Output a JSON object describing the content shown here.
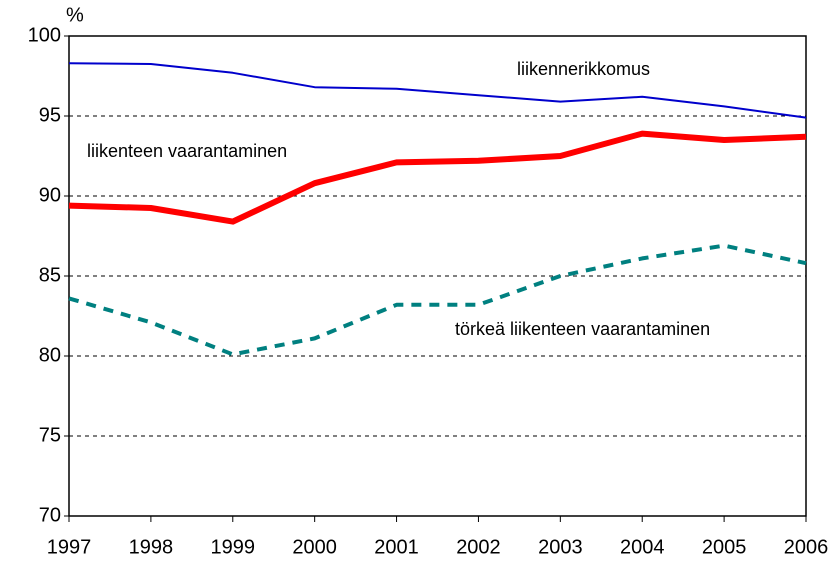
{
  "chart_data": {
    "type": "line",
    "y_label": "%",
    "categories": [
      "1997",
      "1998",
      "1999",
      "2000",
      "2001",
      "2002",
      "2003",
      "2004",
      "2005",
      "2006"
    ],
    "series": [
      {
        "name": "liikennerikkomus",
        "color": "#0000cc",
        "style": "solid",
        "width": 2,
        "values": [
          98.3,
          98.25,
          97.7,
          96.8,
          96.7,
          96.3,
          95.9,
          96.2,
          95.6,
          94.9
        ]
      },
      {
        "name": "liikenteen vaarantaminen",
        "color": "#ff0000",
        "style": "solid",
        "width": 6,
        "values": [
          89.4,
          89.25,
          88.4,
          90.8,
          92.1,
          92.2,
          92.5,
          93.9,
          93.5,
          93.7
        ]
      },
      {
        "name": "törkeä liikenteen vaarantaminen",
        "color": "#008080",
        "style": "dotted",
        "width": 4,
        "values": [
          83.6,
          82.1,
          80.1,
          81.1,
          83.2,
          83.2,
          85.0,
          86.1,
          86.9,
          85.8
        ]
      }
    ],
    "ylim": [
      70,
      100
    ],
    "yticks": [
      70,
      75,
      80,
      85,
      90,
      95,
      100
    ],
    "grid": true
  }
}
